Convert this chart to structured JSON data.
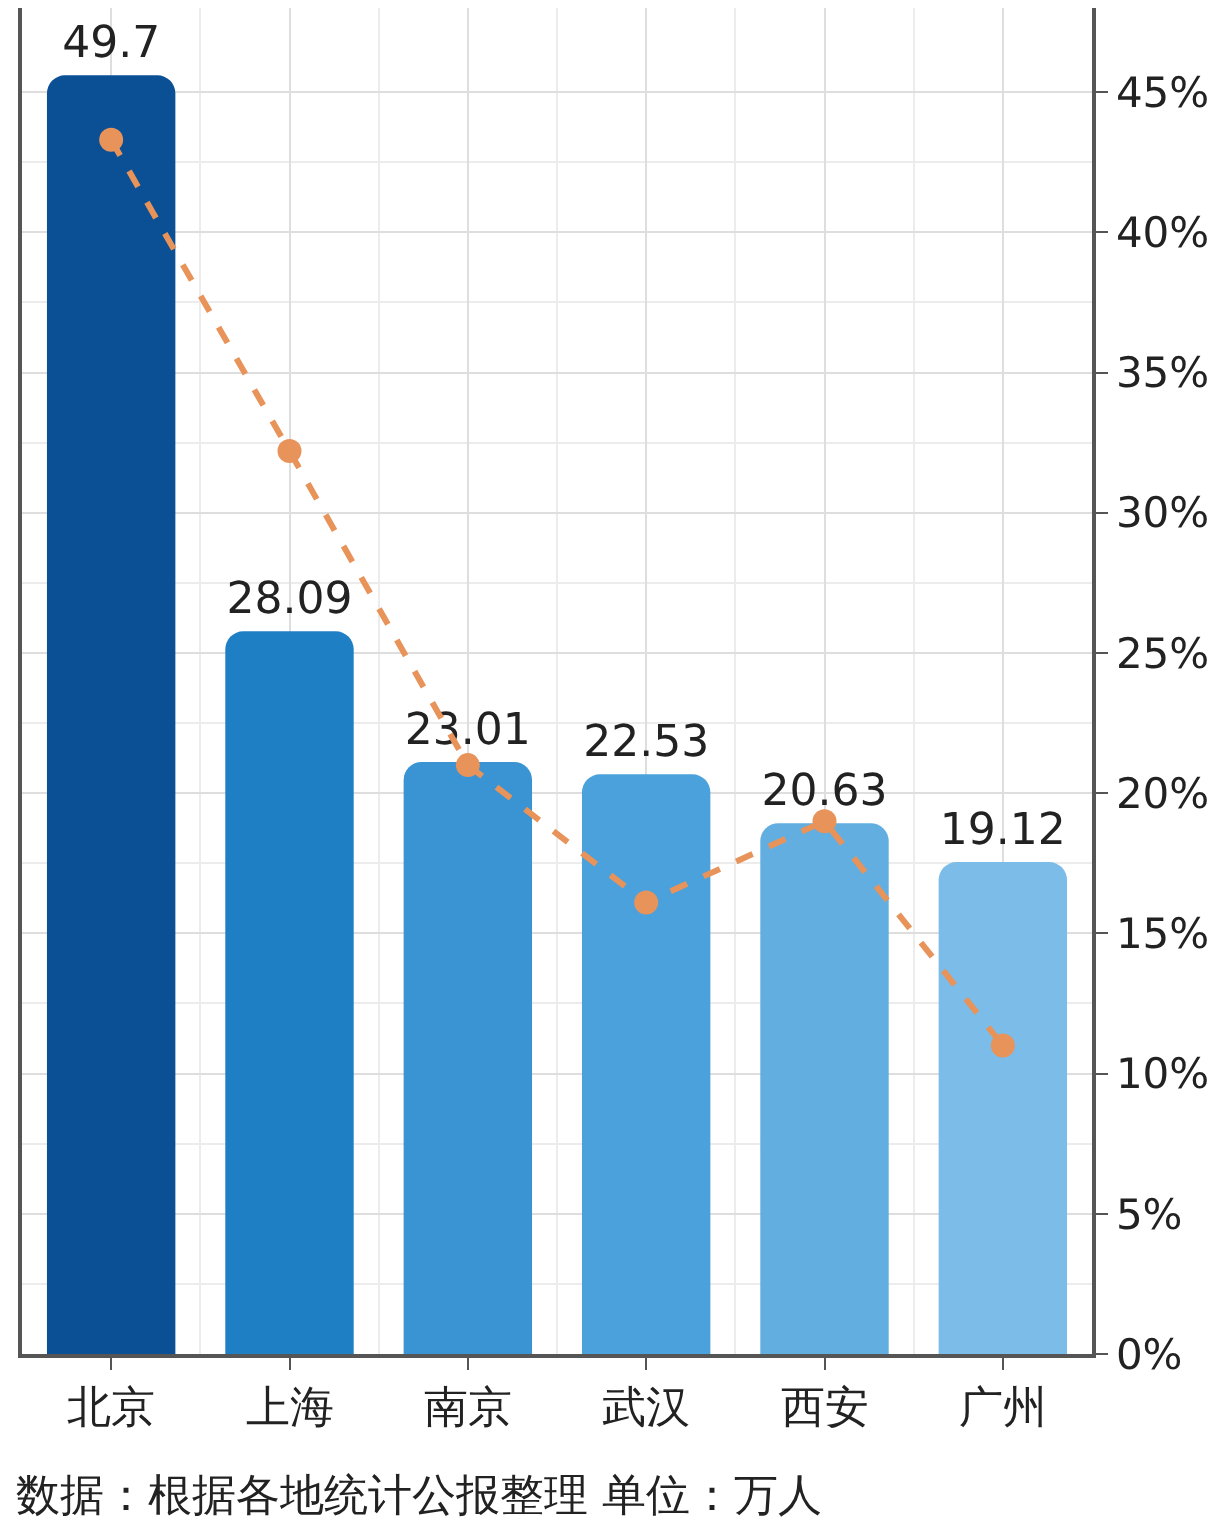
{
  "chart_data": {
    "type": "bar",
    "categories": [
      "北京",
      "上海",
      "南京",
      "武汉",
      "西安",
      "广州"
    ],
    "series": [
      {
        "colors": [
          "#0b4f95",
          "#1f7fc5",
          "#3a93d3",
          "#4ba1db",
          "#62aee1",
          "#7bbde8"
        ],
        "values": [
          49.7,
          28.09,
          23.01,
          22.53,
          20.63,
          19.12
        ],
        "data_labels": true
      },
      {
        "type": "line",
        "axis": "y2",
        "color": "#e8935a",
        "values": [
          43.3,
          32.2,
          21.0,
          16.1,
          19.0,
          11.0
        ],
        "marker": "circle",
        "line_style": "dashed"
      }
    ],
    "y2lim": [
      0,
      48
    ],
    "y2ticks": [
      {
        "value": 0,
        "label": "0%"
      },
      {
        "value": 5,
        "label": "5%"
      },
      {
        "value": 10,
        "label": "10%"
      },
      {
        "value": 15,
        "label": "15%"
      },
      {
        "value": 20,
        "label": "20%"
      },
      {
        "value": 25,
        "label": "25%"
      },
      {
        "value": 30,
        "label": "30%"
      },
      {
        "value": 35,
        "label": "35%"
      },
      {
        "value": 40,
        "label": "40%"
      },
      {
        "value": 45,
        "label": "45%"
      }
    ],
    "grid": true,
    "annotations": [
      "数据：根据各地统计公报整理 单位：万人"
    ]
  }
}
